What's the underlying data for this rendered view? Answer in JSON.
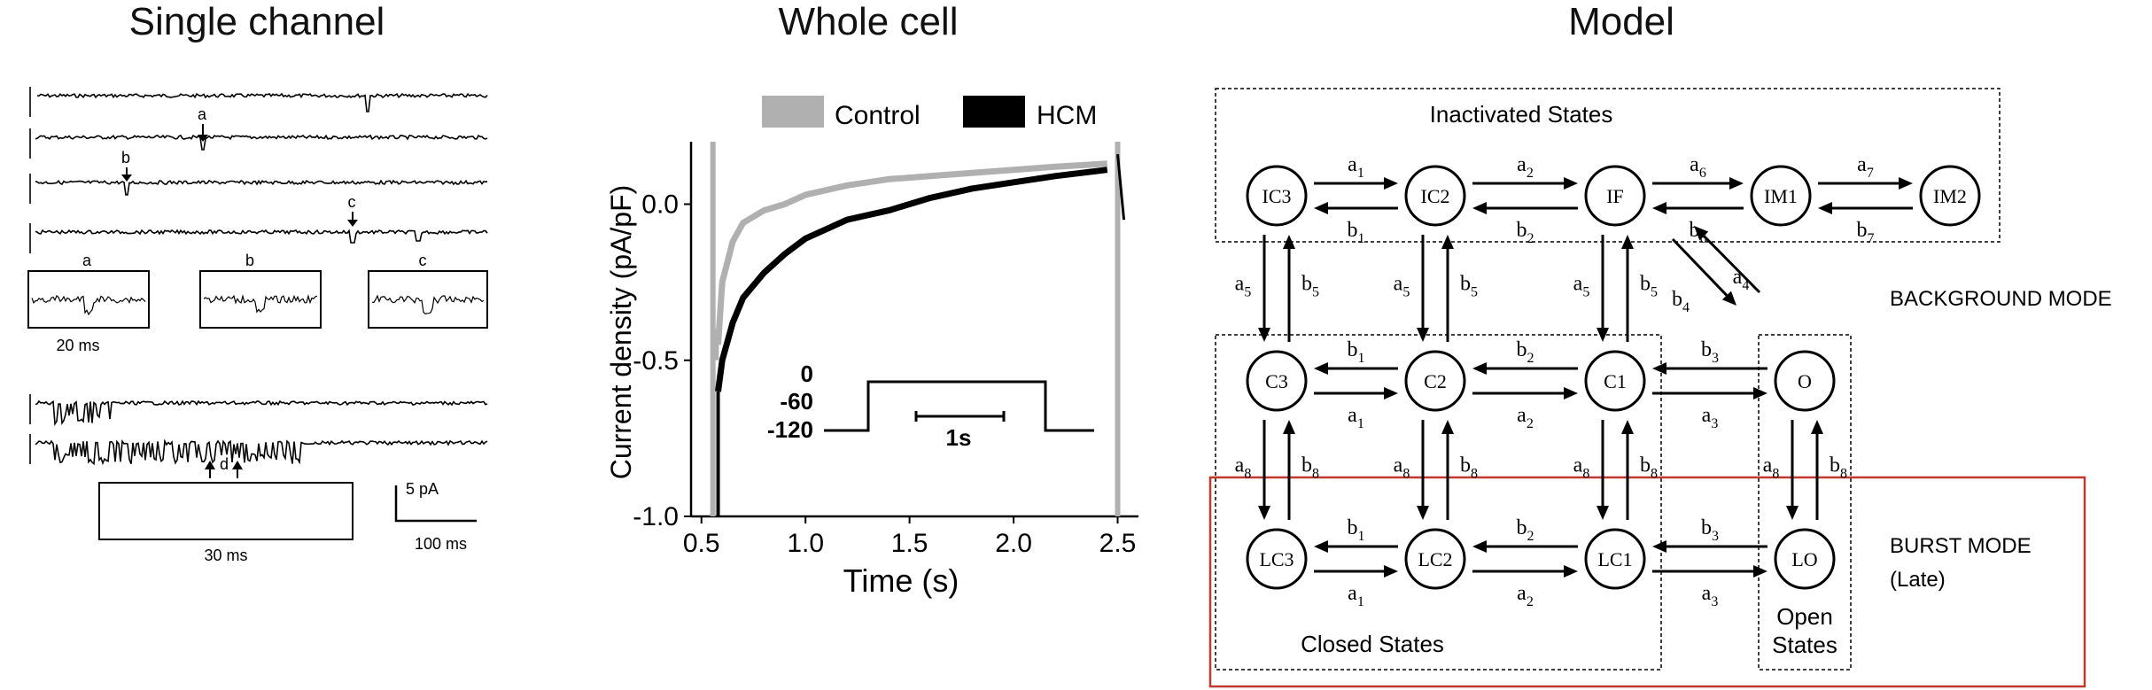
{
  "titles": {
    "single_channel": "Single channel",
    "whole_cell": "Whole cell",
    "model": "Model"
  },
  "single_channel": {
    "event_labels": [
      "a",
      "b",
      "c"
    ],
    "inset_labels": [
      "a",
      "b",
      "c"
    ],
    "inset_scale": "20 ms",
    "burst_event": "d",
    "burst_inset_scale": "30 ms",
    "scale_y": "5 pA",
    "scale_x": "100 ms"
  },
  "chart_data": {
    "type": "line",
    "title": "",
    "xlabel": "Time (s)",
    "ylabel": "Current density (pA/pF)",
    "xlim": [
      0.45,
      2.6
    ],
    "ylim": [
      -1.0,
      0.2
    ],
    "xticks": [
      "0.5",
      "1.0",
      "1.5",
      "2.0",
      "2.5"
    ],
    "yticks": [
      "0.0",
      "-0.5",
      "-1.0"
    ],
    "legend_position": "top",
    "series": [
      {
        "name": "Control",
        "color": "#b0b0b0",
        "x": [
          0.58,
          0.6,
          0.65,
          0.7,
          0.8,
          0.9,
          1.0,
          1.2,
          1.4,
          1.6,
          1.8,
          2.0,
          2.2,
          2.45
        ],
        "y": [
          -0.45,
          -0.25,
          -0.12,
          -0.06,
          -0.02,
          0.0,
          0.03,
          0.06,
          0.08,
          0.09,
          0.1,
          0.11,
          0.12,
          0.13
        ]
      },
      {
        "name": "HCM",
        "color": "#000000",
        "x": [
          0.58,
          0.6,
          0.65,
          0.7,
          0.8,
          0.9,
          1.0,
          1.2,
          1.4,
          1.6,
          1.8,
          2.0,
          2.2,
          2.45
        ],
        "y": [
          -0.6,
          -0.5,
          -0.38,
          -0.3,
          -0.22,
          -0.16,
          -0.11,
          -0.05,
          -0.02,
          0.02,
          0.05,
          0.07,
          0.09,
          0.11
        ]
      }
    ],
    "protocol": {
      "levels": [
        "0",
        "-60",
        "-120"
      ],
      "scale_label": "1s"
    }
  },
  "model": {
    "groups": {
      "inactivated": "Inactivated States",
      "closed": "Closed States",
      "open": "Open\nStates"
    },
    "modes": {
      "background": "BACKGROUND MODE",
      "burst_line1": "BURST MODE",
      "burst_line2": "(Late)"
    },
    "states": {
      "IC3": "IC3",
      "IC2": "IC2",
      "IF": "IF",
      "IM1": "IM1",
      "IM2": "IM2",
      "C3": "C3",
      "C2": "C2",
      "C1": "C1",
      "O": "O",
      "LC3": "LC3",
      "LC2": "LC2",
      "LC1": "LC1",
      "LO": "LO"
    },
    "rates": {
      "a": "a",
      "b": "b",
      "a1": "1",
      "a2": "2",
      "a3": "3",
      "a4": "4",
      "a5": "5",
      "a6": "6",
      "a7": "7",
      "a8": "8"
    },
    "burst_box_color": "#c0392b"
  }
}
